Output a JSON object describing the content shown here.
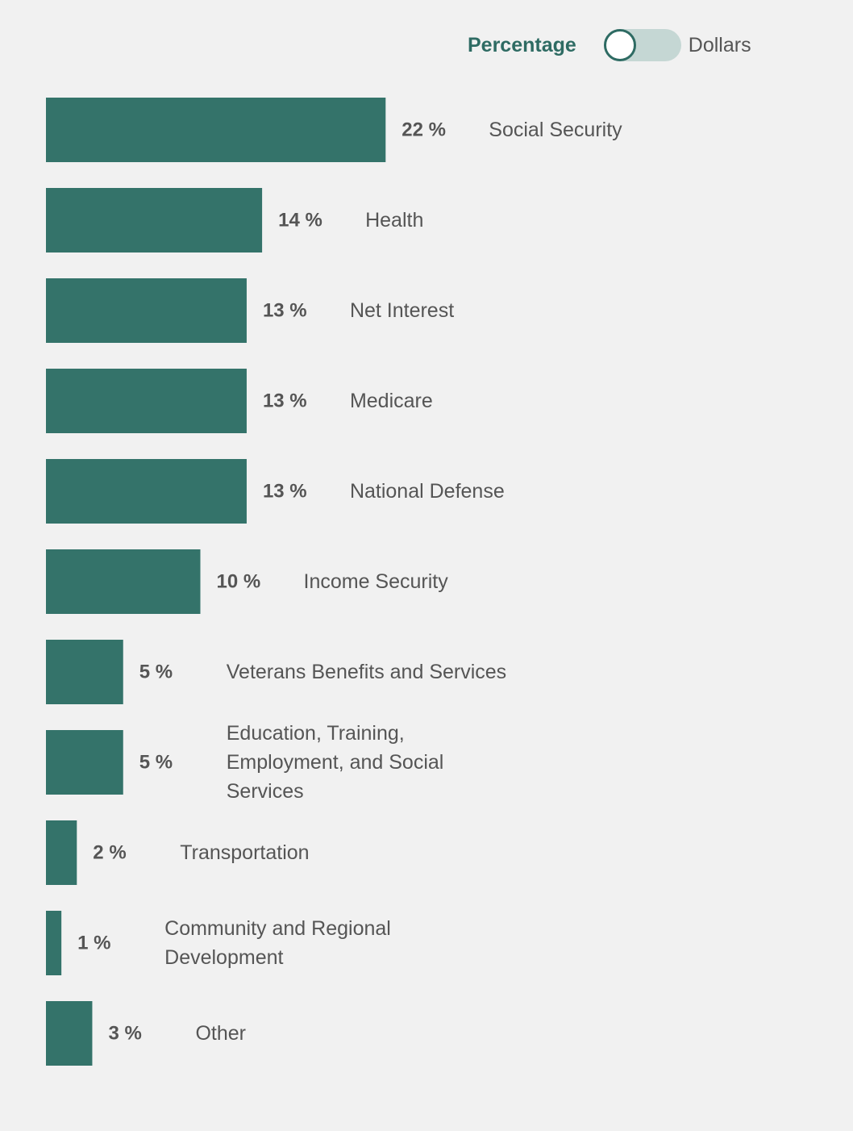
{
  "toggle": {
    "active_label": "Percentage",
    "inactive_label": "Dollars",
    "selected": "Percentage"
  },
  "colors": {
    "bar": "#34736a",
    "accent": "#2e6b63",
    "toggle_track": "#c5d7d4"
  },
  "chart_data": {
    "type": "bar",
    "orientation": "horizontal",
    "unit": "%",
    "categories": [
      "Social Security",
      "Health",
      "Net Interest",
      "Medicare",
      "National Defense",
      "Income Security",
      "Veterans Benefits and Services",
      "Education, Training, Employment, and Social Services",
      "Transportation",
      "Community and Regional Development",
      "Other"
    ],
    "values": [
      22,
      14,
      13,
      13,
      13,
      10,
      5,
      5,
      2,
      1,
      3
    ],
    "value_labels": [
      "22 %",
      "14 %",
      "13 %",
      "13 %",
      "13 %",
      "10 %",
      "5 %",
      "5 %",
      "2 %",
      "1 %",
      "3 %"
    ],
    "label_lines": [
      [
        "Social Security"
      ],
      [
        "Health"
      ],
      [
        "Net Interest"
      ],
      [
        "Medicare"
      ],
      [
        "National Defense"
      ],
      [
        "Income Security"
      ],
      [
        "Veterans Benefits and Services"
      ],
      [
        "Education, Training,",
        "Employment, and Social",
        "Services"
      ],
      [
        "Transportation"
      ],
      [
        "Community and Regional",
        "Development"
      ],
      [
        "Other"
      ]
    ],
    "grid": false,
    "legend": "none"
  }
}
